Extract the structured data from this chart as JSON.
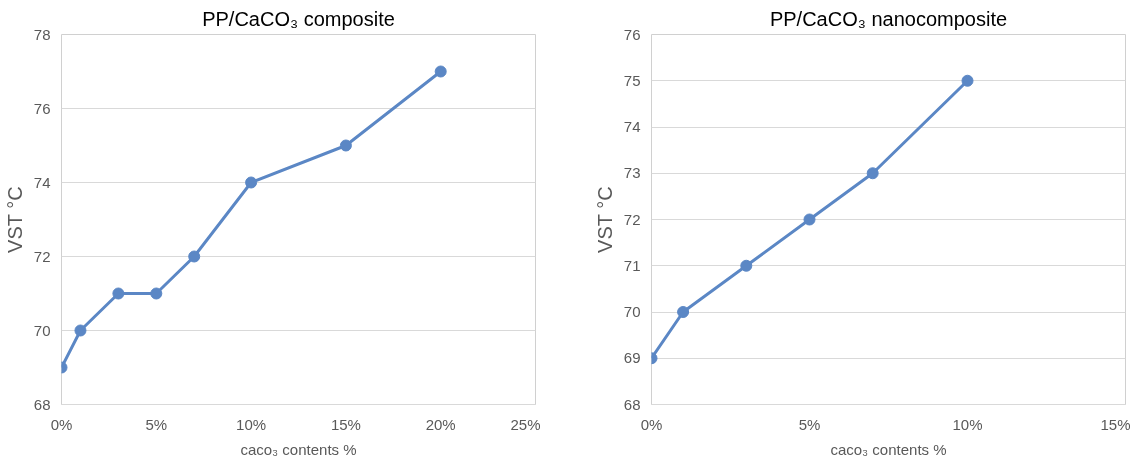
{
  "chart_data": [
    {
      "type": "line",
      "title": "PP/CaCO₃ composite",
      "xlabel": "caco₃ contents %",
      "ylabel": "VST °C",
      "x": [
        0,
        1,
        3,
        5,
        7,
        10,
        15,
        20
      ],
      "series": [
        {
          "color": "#5b87c5",
          "values": [
            69,
            70,
            71,
            71,
            72,
            74,
            75,
            77
          ]
        }
      ],
      "xlim": [
        0,
        25
      ],
      "xticks": [
        {
          "value": 0,
          "label": "0%"
        },
        {
          "value": 5,
          "label": "5%"
        },
        {
          "value": 10,
          "label": "10%"
        },
        {
          "value": 15,
          "label": "15%"
        },
        {
          "value": 20,
          "label": "20%"
        },
        {
          "value": 25,
          "label": "25%"
        }
      ],
      "ylim": [
        68,
        78
      ],
      "yticks": [
        68,
        70,
        72,
        74,
        76,
        78
      ],
      "grid": "y",
      "marker": "circle",
      "line_style": "solid"
    },
    {
      "type": "line",
      "title": "PP/CaCO₃ nanocomposite",
      "xlabel": "caco₃ contents %",
      "ylabel": "VST °C",
      "x": [
        0,
        1,
        3,
        5,
        7,
        10
      ],
      "series": [
        {
          "color": "#5b87c5",
          "values": [
            69,
            70,
            71,
            72,
            73,
            75
          ]
        }
      ],
      "xlim": [
        0,
        15
      ],
      "xticks": [
        {
          "value": 0,
          "label": "0%"
        },
        {
          "value": 5,
          "label": "5%"
        },
        {
          "value": 10,
          "label": "10%"
        },
        {
          "value": 15,
          "label": "15%"
        }
      ],
      "ylim": [
        68,
        76
      ],
      "yticks": [
        68,
        69,
        70,
        71,
        72,
        73,
        74,
        75,
        76
      ],
      "grid": "y",
      "marker": "circle",
      "line_style": "solid"
    }
  ]
}
